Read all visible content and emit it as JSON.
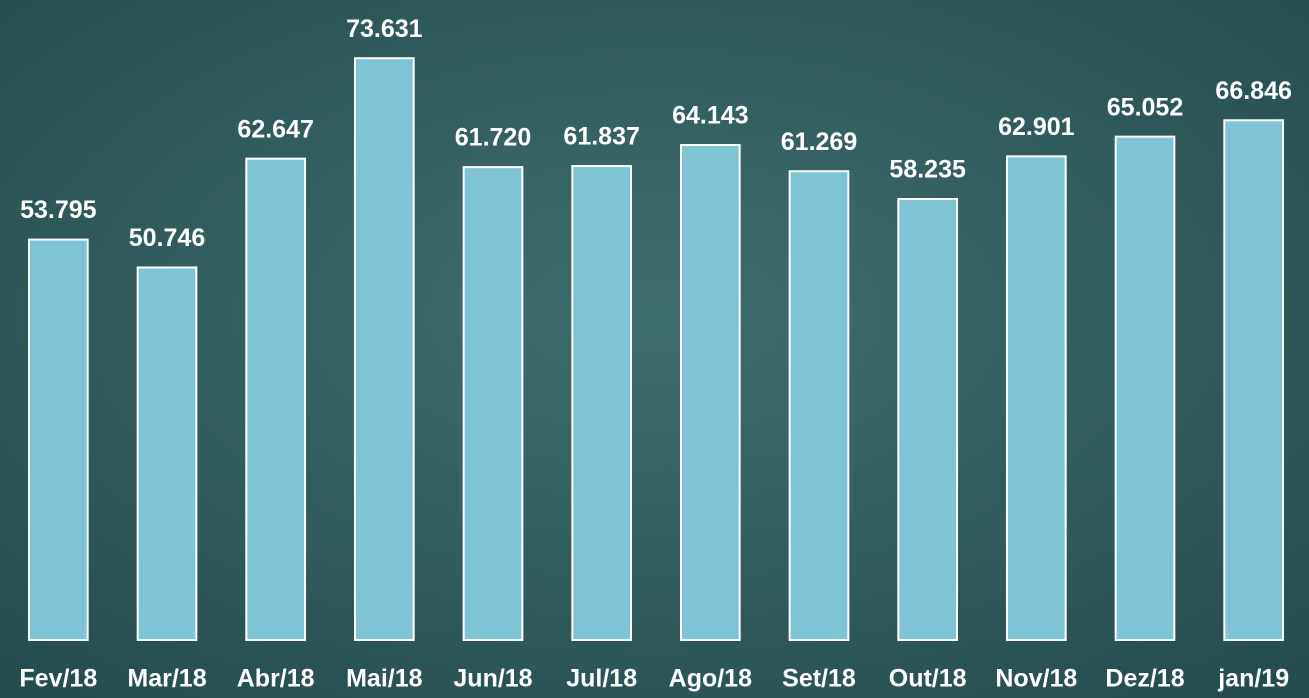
{
  "chart_data": {
    "type": "bar",
    "categories": [
      "Fev/18",
      "Mar/18",
      "Abr/18",
      "Mai/18",
      "Jun/18",
      "Jul/18",
      "Ago/18",
      "Set/18",
      "Out/18",
      "Nov/18",
      "Dez/18",
      "jan/19"
    ],
    "values": [
      53795,
      50746,
      62647,
      73631,
      61720,
      61837,
      64143,
      61269,
      58235,
      62901,
      65052,
      66846
    ],
    "value_labels": [
      "53.795",
      "50.746",
      "62.647",
      "73.631",
      "61.720",
      "61.837",
      "64.143",
      "61.269",
      "58.235",
      "62.901",
      "65.052",
      "66.846"
    ],
    "color": "#7fc4d4",
    "ylim": [
      10000,
      80000
    ]
  }
}
